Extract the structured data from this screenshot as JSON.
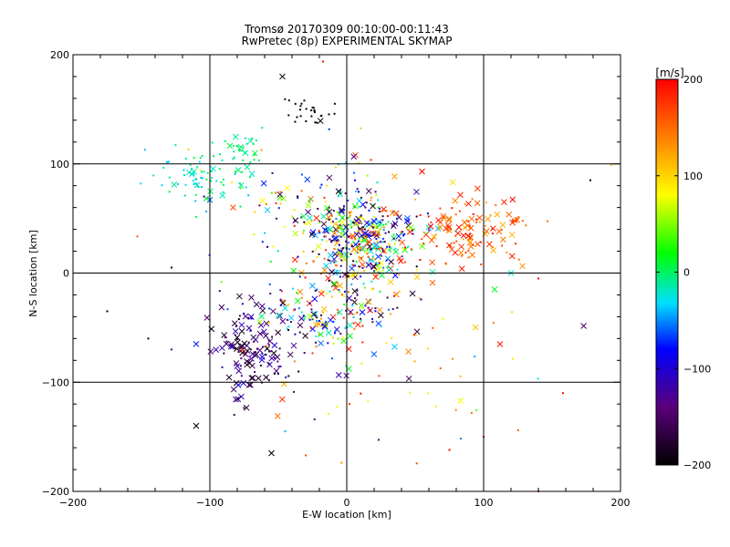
{
  "chart_data": {
    "type": "scatter",
    "title": "Tromsø 20170309 00:10:00-00:11:43",
    "subtitle": "RwPretec (8p) EXPERIMENTAL SKYMAP",
    "xlabel": "E-W location [km]",
    "ylabel": "N-S location [km]",
    "xlim": [
      -200,
      200
    ],
    "ylim": [
      -200,
      200
    ],
    "x_ticks": [
      -200,
      -100,
      0,
      100,
      200
    ],
    "y_ticks": [
      -200,
      -100,
      0,
      100,
      200
    ],
    "x_tick_labels": [
      "−200",
      "−100",
      "0",
      "100",
      "200"
    ],
    "y_tick_labels": [
      "−200",
      "−100",
      "0",
      "100",
      "200"
    ],
    "grid": true,
    "colorbar": {
      "label": "[m/s]",
      "range": [
        -200,
        200
      ],
      "ticks": [
        200,
        100,
        0,
        -100,
        -200
      ],
      "tick_labels": [
        "200",
        "100",
        "0",
        "−100",
        "−200"
      ],
      "colors": [
        "#000000",
        "#5a007a",
        "#0000ff",
        "#00e0ff",
        "#00ff00",
        "#ffff00",
        "#ff7f00",
        "#ff0000"
      ]
    },
    "clusters": [
      {
        "name": "north-black",
        "cx": -25,
        "cy": 148,
        "sx": 10,
        "sy": 8,
        "n": 28,
        "vmin": -200,
        "vmax": -185,
        "cross": 0.1
      },
      {
        "name": "northwest-cyan",
        "cx": -110,
        "cy": 90,
        "sx": 18,
        "sy": 12,
        "n": 70,
        "vmin": -40,
        "vmax": 20,
        "cross": 0.15
      },
      {
        "name": "northwest-green",
        "cx": -75,
        "cy": 110,
        "sx": 8,
        "sy": 10,
        "n": 35,
        "vmin": -10,
        "vmax": 20,
        "cross": 0.15
      },
      {
        "name": "upper-mixed",
        "cx": -30,
        "cy": 60,
        "sx": 35,
        "sy": 25,
        "n": 110,
        "vmin": -200,
        "vmax": 200,
        "cross": 0.3
      },
      {
        "name": "center-dense",
        "cx": 10,
        "cy": 30,
        "sx": 20,
        "sy": 20,
        "n": 420,
        "vmin": -200,
        "vmax": 200,
        "cross": 0.3
      },
      {
        "name": "east-red",
        "cx": 85,
        "cy": 38,
        "sx": 22,
        "sy": 16,
        "n": 130,
        "vmin": 120,
        "vmax": 200,
        "cross": 0.45
      },
      {
        "name": "south-center",
        "cx": -15,
        "cy": -35,
        "sx": 25,
        "sy": 20,
        "n": 170,
        "vmin": -200,
        "vmax": 200,
        "cross": 0.35
      },
      {
        "name": "southwest-dark",
        "cx": -70,
        "cy": -75,
        "sx": 15,
        "sy": 22,
        "n": 140,
        "vmin": -200,
        "vmax": -100,
        "cross": 0.5
      },
      {
        "name": "south-scatter",
        "cx": 40,
        "cy": -90,
        "sx": 55,
        "sy": 35,
        "n": 45,
        "vmin": 80,
        "vmax": 200,
        "cross": 0.25
      },
      {
        "name": "outer-scatter",
        "cx": 0,
        "cy": 0,
        "sx": 95,
        "sy": 85,
        "n": 30,
        "vmin": -200,
        "vmax": 200,
        "cross": 0.2
      }
    ],
    "annotated_points": [
      {
        "x": -47,
        "y": 180,
        "v": -200,
        "marker": "x"
      },
      {
        "x": -110,
        "y": -140,
        "v": -200,
        "marker": "x"
      },
      {
        "x": -55,
        "y": -165,
        "v": -200,
        "marker": "x"
      },
      {
        "x": -175,
        "y": -35,
        "v": -200,
        "marker": "dot"
      },
      {
        "x": 178,
        "y": 85,
        "v": -200,
        "marker": "dot"
      },
      {
        "x": 158,
        "y": -110,
        "v": 200,
        "marker": "dot"
      },
      {
        "x": 140,
        "y": -5,
        "v": 200,
        "marker": "dot"
      },
      {
        "x": 120,
        "y": 0,
        "v": -20,
        "marker": "x"
      },
      {
        "x": 108,
        "y": -15,
        "v": 20,
        "marker": "x"
      },
      {
        "x": 100,
        "y": -150,
        "v": 200,
        "marker": "dot"
      },
      {
        "x": 140,
        "y": -200,
        "v": 200,
        "marker": "dot"
      },
      {
        "x": 75,
        "y": -162,
        "v": 200,
        "marker": "dot"
      },
      {
        "x": -128,
        "y": 5,
        "v": -200,
        "marker": "dot"
      },
      {
        "x": -145,
        "y": -60,
        "v": -200,
        "marker": "dot"
      },
      {
        "x": -128,
        "y": -70,
        "v": -130,
        "marker": "dot"
      },
      {
        "x": -110,
        "y": -65,
        "v": -80,
        "marker": "x"
      },
      {
        "x": 115,
        "y": 65,
        "v": 180,
        "marker": "x"
      },
      {
        "x": 55,
        "y": 93,
        "v": 200,
        "marker": "x"
      },
      {
        "x": -45,
        "y": -145,
        "v": -40,
        "marker": "dot"
      }
    ]
  }
}
